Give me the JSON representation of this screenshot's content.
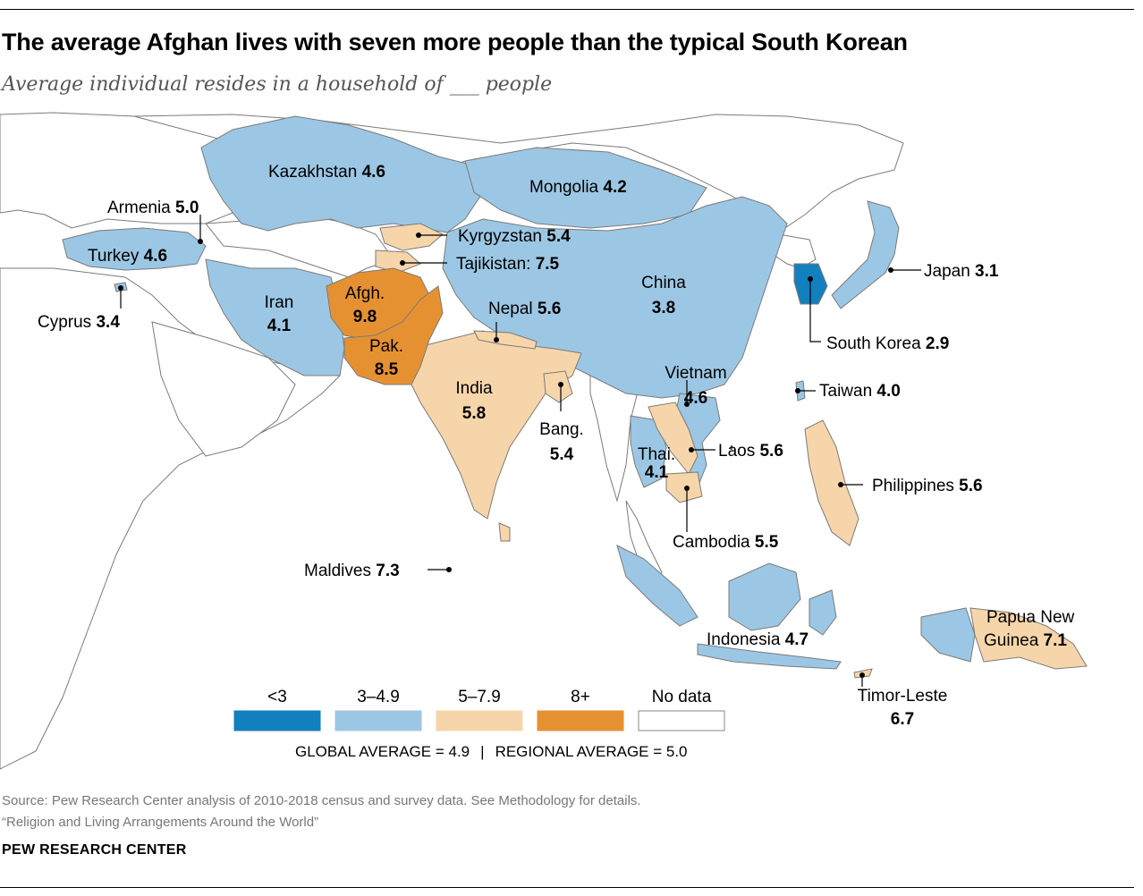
{
  "title": "The average Afghan lives with seven more people than the typical South Korean",
  "subtitle": "Average individual resides in a household of ___ people",
  "colors": {
    "lt3": "#127fbf",
    "r3_4_9": "#9cc7e4",
    "r5_7_9": "#f7d5aa",
    "r8plus": "#e69131",
    "nodata": "#ffffff",
    "border": "#7a7a7a"
  },
  "legend": {
    "items": [
      {
        "label": "<3",
        "color": "#127fbf"
      },
      {
        "label": "3–4.9",
        "color": "#9cc7e4"
      },
      {
        "label": "5–7.9",
        "color": "#f7d5aa"
      },
      {
        "label": "8+",
        "color": "#e69131"
      },
      {
        "label": "No data",
        "color": "#ffffff"
      }
    ],
    "global_average": "GLOBAL AVERAGE = 4.9",
    "separator": "|",
    "regional_average": "REGIONAL AVERAGE = 5.0"
  },
  "countries": [
    {
      "name": "Kazakhstan",
      "value": "4.6"
    },
    {
      "name": "Mongolia",
      "value": "4.2"
    },
    {
      "name": "Armenia",
      "value": "5.0"
    },
    {
      "name": "Kyrgyzstan",
      "value": "5.4"
    },
    {
      "name": "Turkey",
      "value": "4.6"
    },
    {
      "name": "Tajikistan:",
      "value": "7.5"
    },
    {
      "name": "Japan",
      "value": "3.1"
    },
    {
      "name": "Iran",
      "value": "4.1"
    },
    {
      "name": "Afgh.",
      "value": "9.8"
    },
    {
      "name": "China",
      "value": "3.8"
    },
    {
      "name": "Cyprus",
      "value": "3.4"
    },
    {
      "name": "Nepal",
      "value": "5.6"
    },
    {
      "name": "Pak.",
      "value": "8.5"
    },
    {
      "name": "South Korea",
      "value": "2.9"
    },
    {
      "name": "Vietnam",
      "value": "4.6"
    },
    {
      "name": "India",
      "value": "5.8"
    },
    {
      "name": "Taiwan",
      "value": "4.0"
    },
    {
      "name": "Bang.",
      "value": "5.4"
    },
    {
      "name": "Laos",
      "value": "5.6"
    },
    {
      "name": "Thai.",
      "value": "4.1"
    },
    {
      "name": "Philippines",
      "value": "5.6"
    },
    {
      "name": "Cambodia",
      "value": "5.5"
    },
    {
      "name": "Maldives",
      "value": "7.3"
    },
    {
      "name": "Papua New",
      "value": ""
    },
    {
      "name": "Guinea",
      "value": "7.1"
    },
    {
      "name": "Indonesia",
      "value": "4.7"
    },
    {
      "name": "Timor-Leste",
      "value": "6.7"
    }
  ],
  "source_line1": "Source: Pew Research Center analysis of 2010-2018 census and survey data. See Methodology for details.",
  "source_line2": "“Religion and Living Arrangements Around the World”",
  "logo": "PEW RESEARCH CENTER"
}
